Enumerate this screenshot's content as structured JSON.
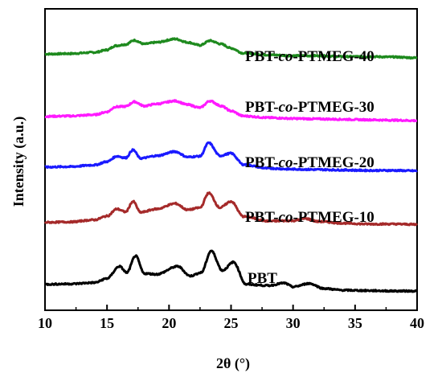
{
  "chart_data": {
    "type": "line",
    "xlabel": "2θ (°)",
    "ylabel": "Intensity (a.u.)",
    "xlim": [
      10,
      40
    ],
    "xticks": [
      10,
      15,
      20,
      25,
      30,
      35,
      40
    ],
    "y_units": "arbitrary (stacked, offset curves)",
    "grid": false,
    "legend": "labels placed beside each curve",
    "series": [
      {
        "name": "PBT-co-PTMEG-40",
        "label_parts": [
          "PBT-",
          "co",
          "-PTMEG-40"
        ],
        "color": "#1e8a1e",
        "x": [
          10,
          12,
          14,
          15,
          15.7,
          16.5,
          17.2,
          18,
          19,
          20.5,
          21.5,
          22.5,
          23.3,
          24.2,
          25,
          26,
          28,
          30,
          32,
          34,
          36,
          38,
          40
        ],
        "y": [
          5.82,
          5.83,
          5.86,
          5.92,
          6.02,
          6.05,
          6.15,
          6.06,
          6.1,
          6.18,
          6.1,
          6.03,
          6.14,
          6.06,
          5.96,
          5.84,
          5.8,
          5.78,
          5.78,
          5.76,
          5.76,
          5.75,
          5.73
        ]
      },
      {
        "name": "PBT-co-PTMEG-30",
        "label_parts": [
          "PBT-",
          "co",
          "-PTMEG-30"
        ],
        "color": "#ff1aff",
        "x": [
          10,
          12,
          14,
          15,
          15.7,
          16.5,
          17.2,
          18,
          19,
          20.5,
          21.5,
          22.5,
          23.3,
          24.2,
          25,
          26,
          28,
          30,
          32,
          34,
          36,
          38,
          40
        ],
        "y": [
          4.33,
          4.34,
          4.37,
          4.44,
          4.56,
          4.57,
          4.68,
          4.58,
          4.63,
          4.7,
          4.61,
          4.54,
          4.7,
          4.58,
          4.46,
          4.34,
          4.3,
          4.28,
          4.27,
          4.26,
          4.25,
          4.24,
          4.23
        ]
      },
      {
        "name": "PBT-co-PTMEG-20",
        "label_parts": [
          "PBT-",
          "co",
          "-PTMEG-20"
        ],
        "color": "#1a1aff",
        "x": [
          10,
          12,
          14,
          15,
          15.8,
          16.5,
          17.1,
          17.7,
          19,
          20.5,
          21.5,
          22.5,
          23.2,
          24.1,
          25,
          26,
          28,
          30,
          32,
          34,
          36,
          38,
          40
        ],
        "y": [
          3.12,
          3.13,
          3.17,
          3.25,
          3.38,
          3.34,
          3.53,
          3.33,
          3.39,
          3.49,
          3.36,
          3.38,
          3.7,
          3.39,
          3.45,
          3.18,
          3.09,
          3.07,
          3.06,
          3.05,
          3.04,
          3.04,
          3.03
        ]
      },
      {
        "name": "PBT-co-PTMEG-10",
        "label_parts": [
          "PBT-",
          "co",
          "-PTMEG-10"
        ],
        "color": "#a52a2a",
        "x": [
          10,
          12,
          14,
          15,
          15.8,
          16.5,
          17.1,
          17.7,
          19,
          20.5,
          21.5,
          22.5,
          23.2,
          24.1,
          25,
          26,
          28,
          30,
          31,
          32,
          34,
          36,
          38,
          40
        ],
        "y": [
          1.8,
          1.81,
          1.86,
          1.95,
          2.12,
          2.05,
          2.3,
          2.04,
          2.12,
          2.25,
          2.1,
          2.15,
          2.5,
          2.15,
          2.3,
          1.94,
          1.83,
          1.84,
          1.89,
          1.82,
          1.78,
          1.76,
          1.76,
          1.75
        ]
      },
      {
        "name": "PBT",
        "label_parts": [
          "PBT"
        ],
        "color": "#000000",
        "x": [
          10,
          12,
          14,
          15,
          16,
          16.6,
          17.3,
          18,
          19,
          20.7,
          21.7,
          22.6,
          23.4,
          24.3,
          25.2,
          26.2,
          28,
          29.3,
          30,
          31.3,
          32.5,
          34,
          36,
          38,
          40
        ],
        "y": [
          0.32,
          0.33,
          0.36,
          0.46,
          0.75,
          0.6,
          1.0,
          0.58,
          0.56,
          0.75,
          0.52,
          0.6,
          1.12,
          0.65,
          0.85,
          0.32,
          0.29,
          0.35,
          0.26,
          0.34,
          0.22,
          0.18,
          0.17,
          0.16,
          0.16
        ]
      }
    ]
  }
}
